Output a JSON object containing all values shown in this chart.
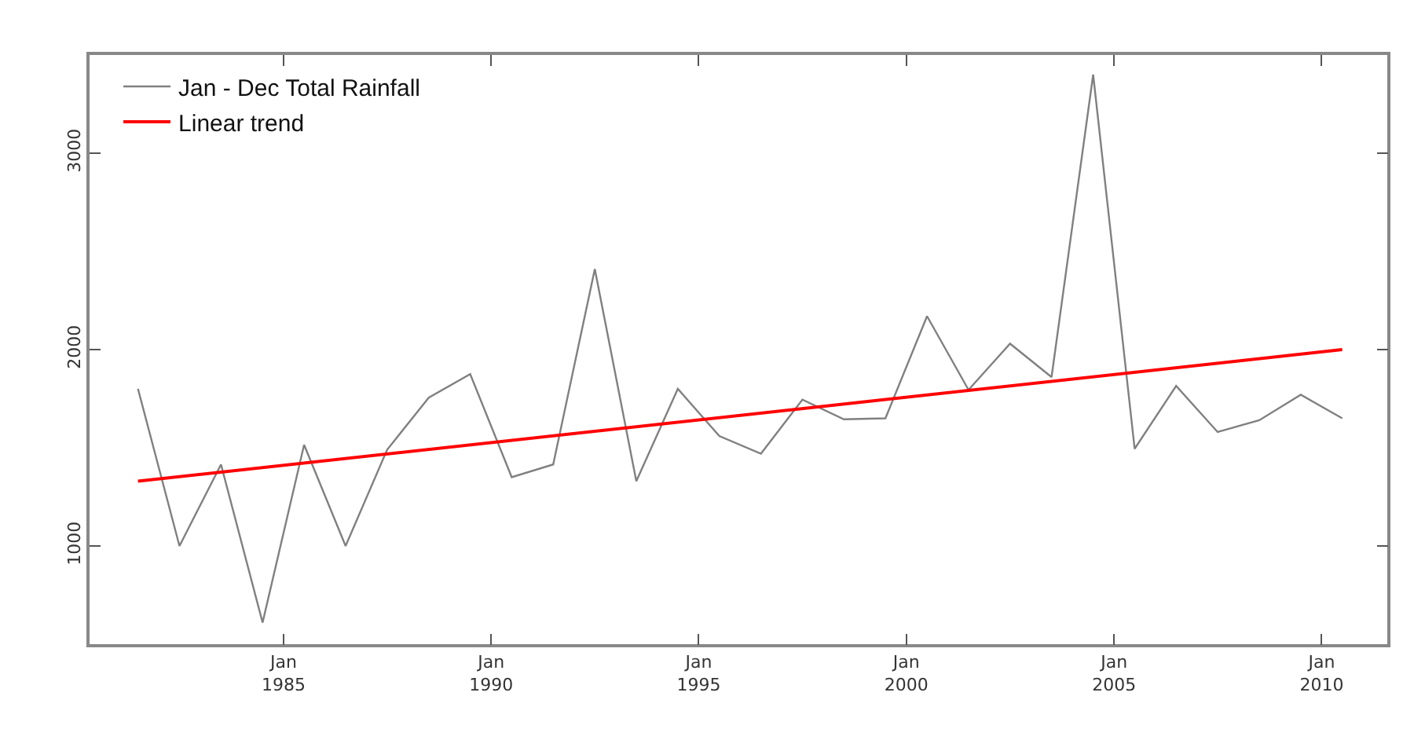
{
  "chart_data": {
    "type": "line",
    "x": [
      "1981-07",
      "1982-07",
      "1983-07",
      "1984-07",
      "1985-07",
      "1986-07",
      "1987-07",
      "1988-07",
      "1989-07",
      "1990-07",
      "1991-07",
      "1992-07",
      "1993-07",
      "1994-07",
      "1995-07",
      "1996-07",
      "1997-07",
      "1998-07",
      "1999-07",
      "2000-07",
      "2001-07",
      "2002-07",
      "2003-07",
      "2004-07",
      "2005-07",
      "2006-07",
      "2007-07",
      "2008-07",
      "2009-07",
      "2010-07"
    ],
    "series": [
      {
        "name": "Jan - Dec Total Rainfall",
        "color": "#808080",
        "values": [
          1800,
          1000,
          1415,
          610,
          1515,
          1000,
          1490,
          1755,
          1875,
          1350,
          1415,
          2410,
          1330,
          1800,
          1560,
          1470,
          1745,
          1645,
          1650,
          2170,
          1795,
          2030,
          1860,
          3400,
          1495,
          1815,
          1580,
          1640,
          1770,
          1650
        ]
      },
      {
        "name": "Linear trend",
        "color": "#ff0000",
        "x": [
          "1981-07",
          "2010-07"
        ],
        "values": [
          1330,
          2000
        ]
      }
    ],
    "xlim": [
      "1980-05",
      "2011-08"
    ],
    "xticks": [
      {
        "value": "1985-01",
        "label": "Jan\n1985"
      },
      {
        "value": "1990-01",
        "label": "Jan\n1990"
      },
      {
        "value": "1995-01",
        "label": "Jan\n1995"
      },
      {
        "value": "2000-01",
        "label": "Jan\n2000"
      },
      {
        "value": "2005-01",
        "label": "Jan\n2005"
      },
      {
        "value": "2010-01",
        "label": "Jan\n2010"
      }
    ],
    "ylim": [
      500,
      3500
    ],
    "yticks": [
      1000,
      2000,
      3000
    ],
    "legend": "top left",
    "marker": "none",
    "line_style": "solid"
  }
}
